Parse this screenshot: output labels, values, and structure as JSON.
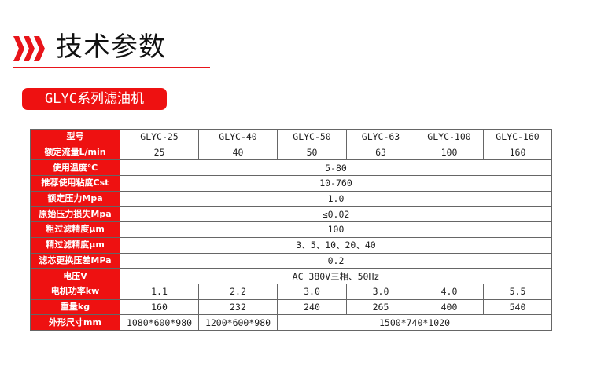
{
  "header": {
    "title": "技术参数",
    "icon": "triple-chevron-right-icon",
    "accent": "#e8141a"
  },
  "badge": {
    "label": "GLYC系列滤油机"
  },
  "table": {
    "header": {
      "label": "型号",
      "models": [
        "GLYC-25",
        "GLYC-40",
        "GLYC-50",
        "GLYC-63",
        "GLYC-100",
        "GLYC-160"
      ]
    },
    "flow": {
      "label": "额定流量L/min",
      "values": [
        "25",
        "40",
        "50",
        "63",
        "100",
        "160"
      ]
    },
    "temp": {
      "label": "使用温度℃",
      "value": "5-80"
    },
    "viscosity": {
      "label": "推荐使用粘度Cst",
      "value": "10-760"
    },
    "pressure": {
      "label": "额定压力Mpa",
      "value": "1.0"
    },
    "loss": {
      "label": "原始压力损失Mpa",
      "value": "≤0.02"
    },
    "coarse": {
      "label": "粗过滤精度μm",
      "value": "100"
    },
    "fine": {
      "label": "精过滤精度μm",
      "value": "3、5、10、20、40"
    },
    "diff": {
      "label": "滤芯更换压差MPa",
      "value": "0.2"
    },
    "voltage": {
      "label": "电压V",
      "value": "AC 380V三相、50Hz"
    },
    "power": {
      "label": "电机功率kw",
      "values": [
        "1.1",
        "2.2",
        "3.0",
        "3.0",
        "4.0",
        "5.5"
      ]
    },
    "weight": {
      "label": "重量kg",
      "values": [
        "160",
        "232",
        "240",
        "265",
        "400",
        "540"
      ]
    },
    "size": {
      "label": "外形尺寸mm",
      "values": [
        "1080*600*980",
        "1200*600*980",
        "1500*740*1020"
      ]
    }
  }
}
